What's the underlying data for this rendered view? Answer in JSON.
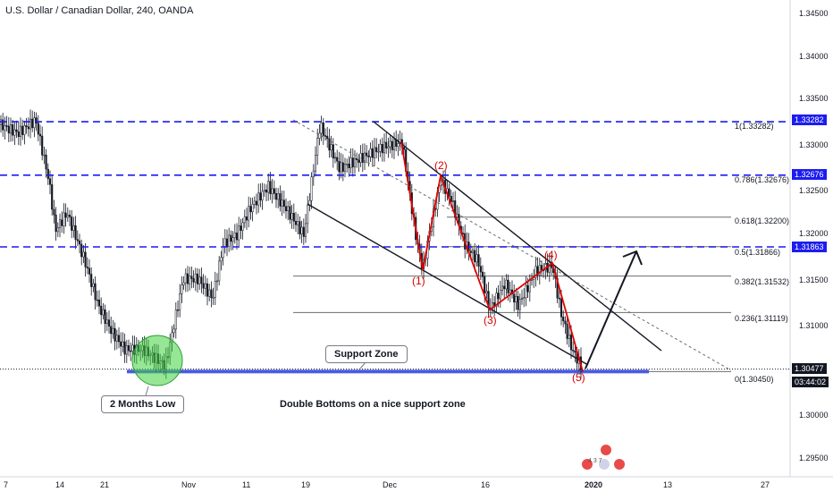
{
  "header": {
    "symbol": "U.S. Dollar / Canadian Dollar, 240, OANDA"
  },
  "price_axis": {
    "ticks": [
      "1.34500",
      "1.34000",
      "1.33500",
      "1.33000",
      "1.32500",
      "1.32000",
      "1.31500",
      "1.31000",
      "1.30000",
      "1.29500"
    ]
  },
  "time_axis": {
    "ticks": [
      "7",
      "14",
      "21",
      "Nov",
      "11",
      "19",
      "Dec",
      "16",
      "2020",
      "13",
      "27"
    ]
  },
  "price_tags": {
    "level_1": "1.33282",
    "level_2": "1.32676",
    "level_3": "1.31863",
    "current_price": "1.30477",
    "countdown": "03:44:02"
  },
  "fib_labels": {
    "f1": "1(1.33282)",
    "f0786": "0.786(1.32676)",
    "f0618": "0.618(1.32200)",
    "f05": "0.5(1.31866)",
    "f0382": "0.382(1.31532)",
    "f0236": "0.236(1.31119)",
    "f0": "0(1.30450)"
  },
  "wave_labels": {
    "w1": "(1)",
    "w2": "(2)",
    "w3": "(3)",
    "w4": "(4)",
    "w5": "(5)"
  },
  "annotations": {
    "support_zone": "Support Zone",
    "two_months_low": "2 Months Low",
    "note": "Double Bottoms on a nice support zone"
  },
  "event_markers": {
    "numbers": "4 3 7"
  },
  "colors": {
    "bull": "#131722",
    "bear": "#131722",
    "dashed_levels": "#1c1cf0",
    "waves": "#e00000",
    "price_tag": "#1c1cf0",
    "current_tag": "#131722"
  },
  "chart_data": {
    "type": "line",
    "title": "U.S. Dollar / Canadian Dollar, 240, OANDA",
    "ylim": [
      1.294,
      1.348
    ],
    "x": [
      "Oct 7",
      "Oct 14",
      "Oct 21",
      "Nov 1",
      "Nov 11",
      "Nov 19",
      "Dec 2",
      "Dec 16",
      "Jan 2",
      "Jan 13",
      "Jan 27"
    ],
    "series": [
      {
        "values": [
          1.3325,
          1.322,
          1.306,
          1.3075,
          1.3235,
          1.33,
          1.329,
          1.315,
          1.3048,
          null,
          null
        ]
      }
    ],
    "horizontal_levels": [
      1.33282,
      1.32676,
      1.31863,
      1.30477
    ],
    "fib_levels": [
      {
        "ratio": 1,
        "price": 1.33282
      },
      {
        "ratio": 0.786,
        "price": 1.32676
      },
      {
        "ratio": 0.618,
        "price": 1.322
      },
      {
        "ratio": 0.5,
        "price": 1.31866
      },
      {
        "ratio": 0.382,
        "price": 1.31532
      },
      {
        "ratio": 0.236,
        "price": 1.31119
      },
      {
        "ratio": 0,
        "price": 1.3045
      }
    ],
    "elliott_wave": [
      {
        "label": "(1)",
        "price": 1.316
      },
      {
        "label": "(2)",
        "price": 1.3267
      },
      {
        "label": "(3)",
        "price": 1.3115
      },
      {
        "label": "(4)",
        "price": 1.3168
      },
      {
        "label": "(5)",
        "price": 1.3045
      }
    ],
    "grid": false,
    "legend": "none"
  }
}
